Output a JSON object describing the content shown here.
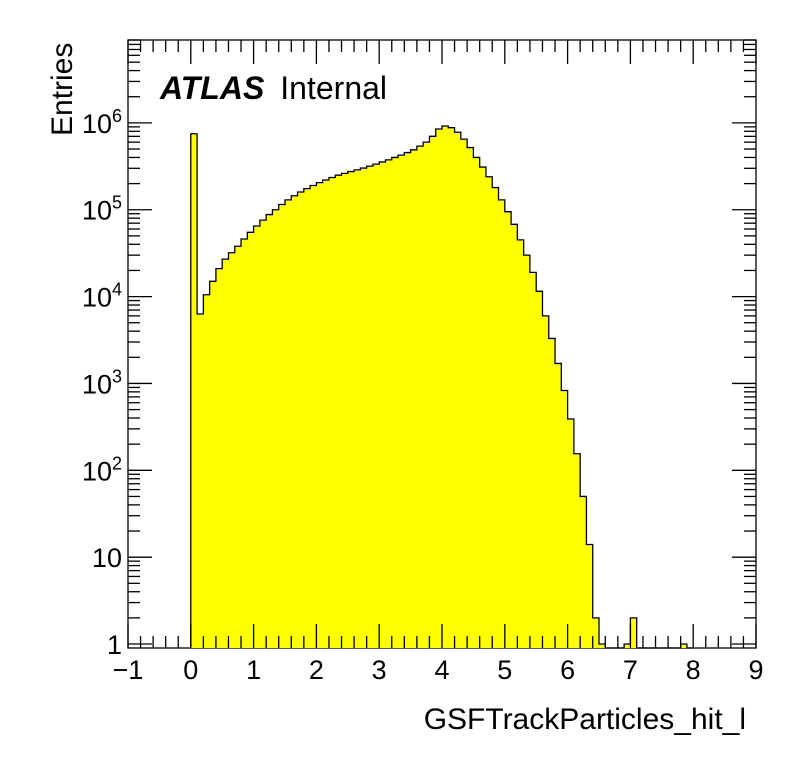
{
  "watermark": {
    "experiment": "ATLAS",
    "status": "Internal"
  },
  "chart_data": {
    "type": "bar",
    "title": "",
    "xlabel": "GSFTrackParticles_hit_l",
    "ylabel": "Entries",
    "xlim": [
      -1,
      9
    ],
    "ylim": [
      0.9,
      9000000
    ],
    "ylog": true,
    "bin_width": 0.1,
    "bin_start": 0,
    "fill_color": "#ffff00",
    "line_color": "#000000",
    "x_ticks": [
      "−1",
      "0",
      "1",
      "2",
      "3",
      "4",
      "5",
      "6",
      "7",
      "8",
      "9"
    ],
    "y_ticks": [
      {
        "value": 1,
        "label": "1"
      },
      {
        "value": 10,
        "label": "10"
      },
      {
        "value": 100,
        "label": "10",
        "exp": "2"
      },
      {
        "value": 1000,
        "label": "10",
        "exp": "3"
      },
      {
        "value": 10000,
        "label": "10",
        "exp": "4"
      },
      {
        "value": 100000,
        "label": "10",
        "exp": "5"
      },
      {
        "value": 1000000,
        "label": "10",
        "exp": "6"
      }
    ],
    "values": [
      750000,
      6300,
      10500,
      15000,
      21000,
      27000,
      32000,
      38000,
      46000,
      55000,
      65000,
      76000,
      88000,
      100000,
      115000,
      130000,
      145000,
      160000,
      175000,
      190000,
      205000,
      220000,
      235000,
      250000,
      262000,
      275000,
      288000,
      302000,
      318000,
      335000,
      355000,
      375000,
      400000,
      425000,
      455000,
      490000,
      540000,
      600000,
      700000,
      850000,
      920000,
      880000,
      780000,
      650000,
      520000,
      400000,
      310000,
      240000,
      180000,
      130000,
      95000,
      68000,
      45000,
      30000,
      19000,
      11500,
      6000,
      3300,
      1700,
      830,
      390,
      155,
      50,
      14,
      2,
      1,
      0,
      0,
      0,
      1,
      2,
      0,
      0,
      0,
      0,
      0,
      0,
      0,
      1,
      0
    ]
  }
}
